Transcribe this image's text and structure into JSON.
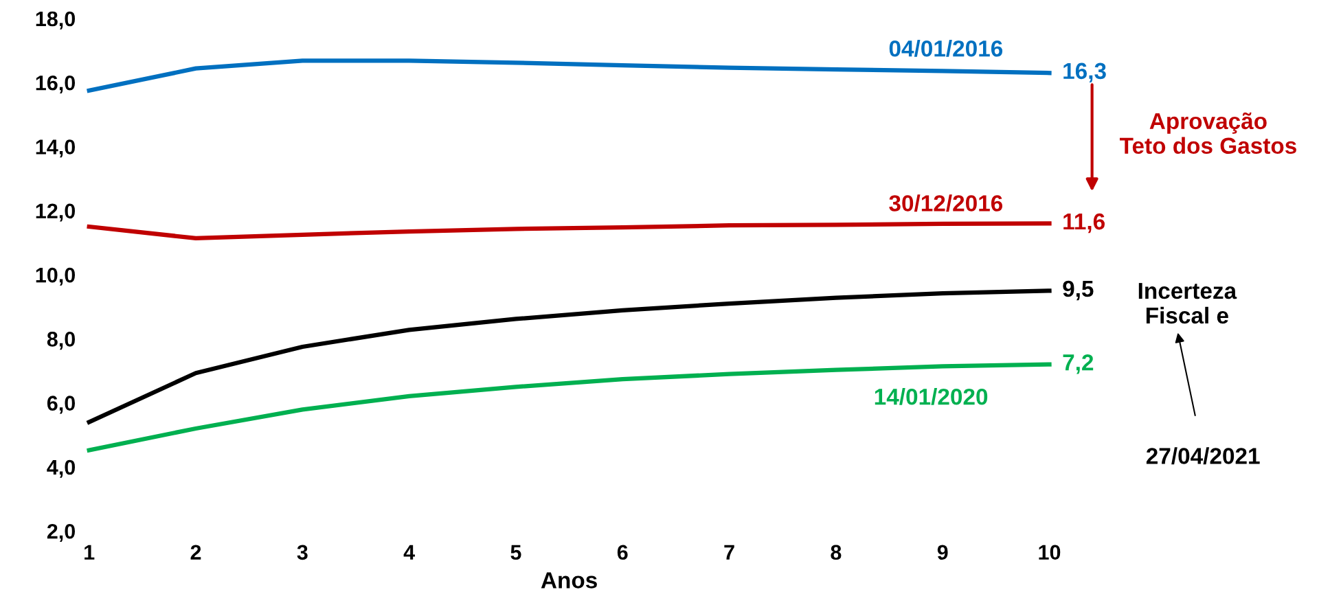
{
  "chart_data": {
    "type": "line",
    "xlabel": "Anos",
    "x": [
      1,
      2,
      3,
      4,
      5,
      6,
      7,
      8,
      9,
      10
    ],
    "xlim": [
      1,
      10
    ],
    "xticks": [
      1,
      2,
      3,
      4,
      5,
      6,
      7,
      8,
      9,
      10
    ],
    "ylim": [
      2,
      18
    ],
    "yticks": [
      {
        "value": 2,
        "label": "2,0"
      },
      {
        "value": 4,
        "label": "4,0"
      },
      {
        "value": 6,
        "label": "6,0"
      },
      {
        "value": 8,
        "label": "8,0"
      },
      {
        "value": 10,
        "label": "10,0"
      },
      {
        "value": 12,
        "label": "12,0"
      },
      {
        "value": 14,
        "label": "14,0"
      },
      {
        "value": 16,
        "label": "16,0"
      },
      {
        "value": 18,
        "label": "18,0"
      }
    ],
    "grid": false,
    "legend": false,
    "marker": "none",
    "line_style": "solid",
    "series": [
      {
        "name": "04/01/2016",
        "color": "#0070c0",
        "values": [
          15.75,
          16.44,
          16.68,
          16.68,
          16.62,
          16.54,
          16.46,
          16.41,
          16.36,
          16.3
        ],
        "value_labels": [
          null,
          null,
          null,
          null,
          null,
          null,
          null,
          null,
          null,
          "16,3"
        ]
      },
      {
        "name": "30/12/2016",
        "color": "#c00000",
        "values": [
          11.5,
          11.14,
          11.25,
          11.35,
          11.43,
          11.48,
          11.54,
          11.56,
          11.59,
          11.6
        ],
        "value_labels": [
          null,
          null,
          null,
          null,
          null,
          null,
          null,
          null,
          null,
          "11,6"
        ]
      },
      {
        "name": "27/04/2021",
        "color": "#000000",
        "values": [
          5.4,
          6.93,
          7.75,
          8.28,
          8.62,
          8.89,
          9.1,
          9.28,
          9.42,
          9.5
        ],
        "value_labels": [
          null,
          null,
          null,
          null,
          null,
          null,
          null,
          null,
          null,
          "9,5"
        ]
      },
      {
        "name": "14/01/2020",
        "color": "#00b050",
        "values": [
          4.52,
          5.2,
          5.79,
          6.21,
          6.5,
          6.74,
          6.9,
          7.03,
          7.14,
          7.2
        ],
        "value_labels": [
          null,
          null,
          null,
          null,
          null,
          null,
          null,
          null,
          null,
          "7,2"
        ]
      }
    ],
    "annotations": [
      "Aprovação\nTeto dos Gastos",
      "Incerteza\nFiscal e"
    ]
  }
}
